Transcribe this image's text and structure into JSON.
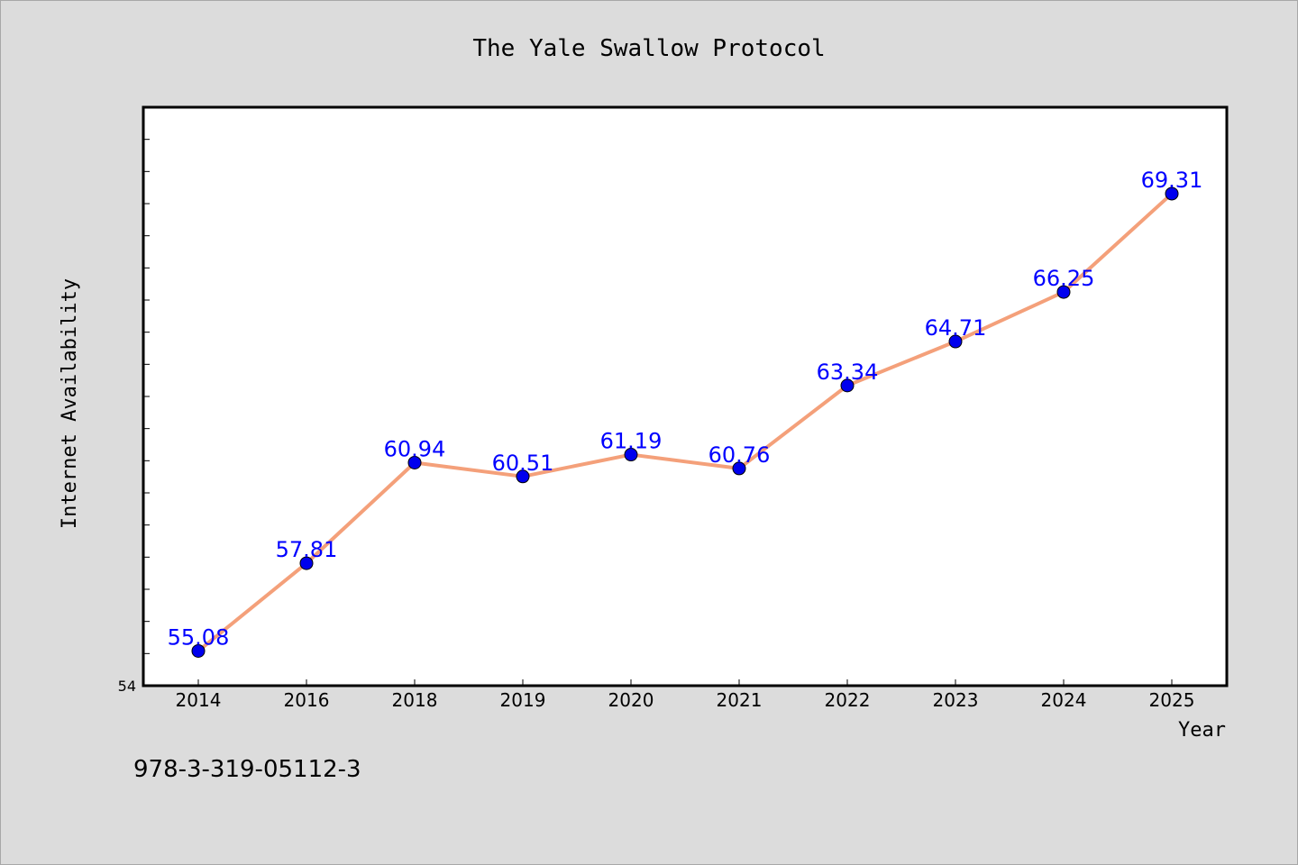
{
  "chart_data": {
    "type": "line",
    "title": "The Yale Swallow Protocol",
    "xlabel": "Year",
    "ylabel": "Internet Availability",
    "categories": [
      "2014",
      "2016",
      "2018",
      "2019",
      "2020",
      "2021",
      "2022",
      "2023",
      "2024",
      "2025"
    ],
    "series": [
      {
        "values": [
          55.08,
          57.81,
          60.94,
          60.51,
          61.19,
          60.76,
          63.34,
          64.71,
          66.25,
          69.31
        ],
        "data_labels": [
          "55.08",
          "57.81",
          "60.94",
          "60.51",
          "61.19",
          "60.76",
          "63.34",
          "64.71",
          "66.25",
          "69.31"
        ],
        "line_color": "#f4a07a",
        "marker_color": "#0000ee",
        "label_color": "#0000ff"
      }
    ],
    "ylim": [
      54,
      72
    ],
    "y_tick_labels": [
      "54"
    ],
    "grid": false,
    "legend": "none"
  },
  "footer": {
    "isbn": "978-3-319-05112-3"
  },
  "colors": {
    "background": "#dcdcdc",
    "plot_background": "#ffffff",
    "axis": "#000000"
  }
}
